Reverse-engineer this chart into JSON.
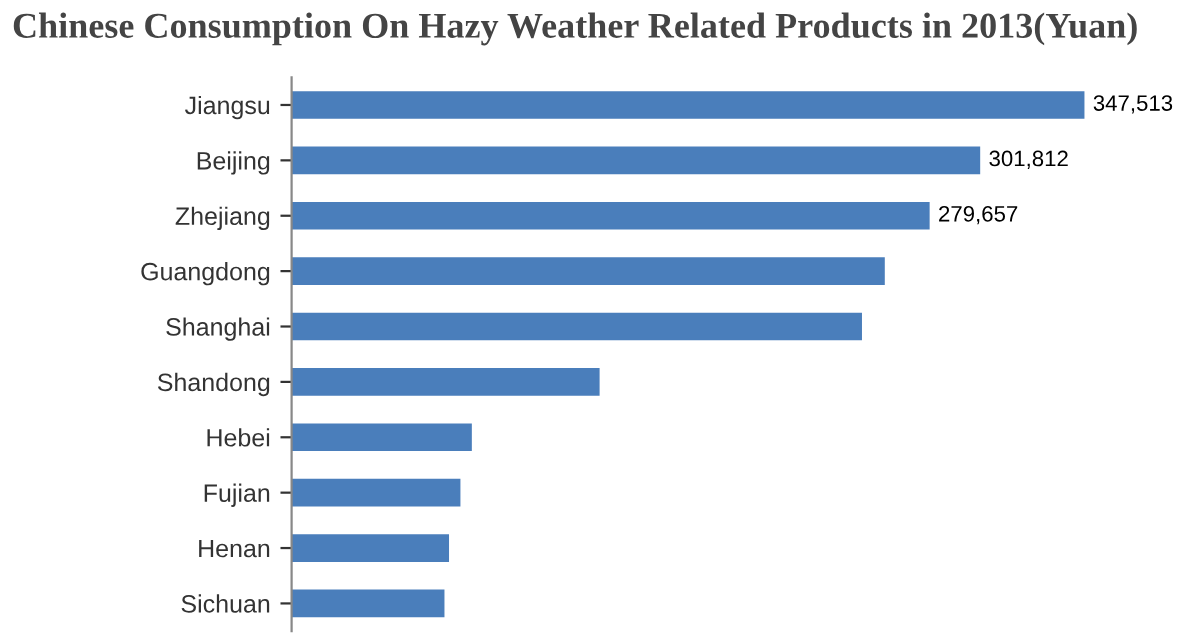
{
  "chart_data": {
    "type": "bar",
    "orientation": "horizontal",
    "title": "Chinese Consumption On Hazy Weather Related Products in 2013(Yuan)",
    "categories": [
      "Jiangsu",
      "Beijing",
      "Zhejiang",
      "Guangdong",
      "Shanghai",
      "Shandong",
      "Hebei",
      "Fujian",
      "Henan",
      "Sichuan"
    ],
    "values": [
      347513,
      301812,
      279657,
      260000,
      250000,
      135000,
      79000,
      74000,
      69000,
      67000
    ],
    "value_labels": [
      "347,513",
      "301,812",
      "279,657",
      null,
      null,
      null,
      null,
      null,
      null,
      null
    ],
    "color": "#4a7ebb",
    "grid": false,
    "legend": false
  }
}
